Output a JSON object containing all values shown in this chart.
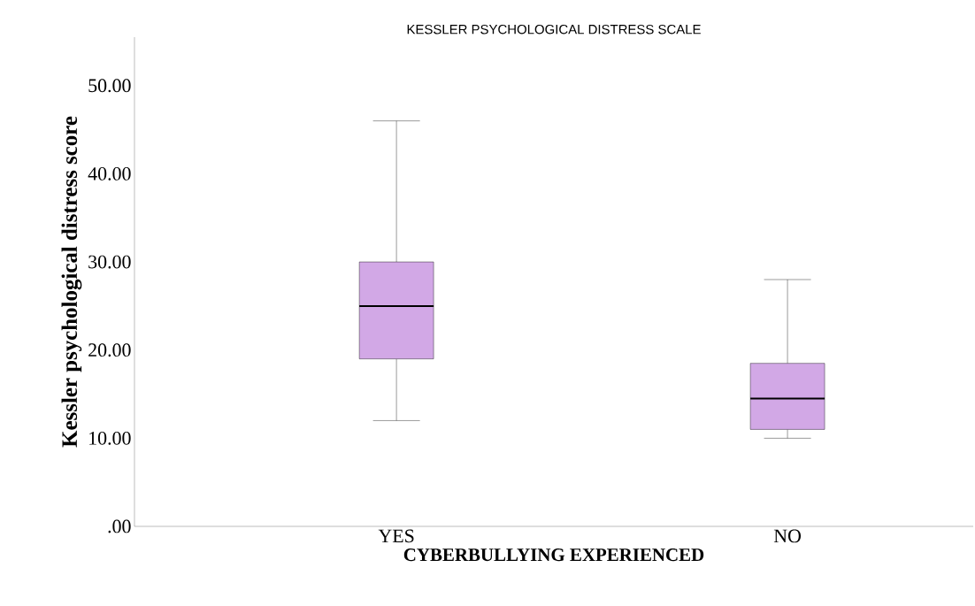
{
  "chart_data": {
    "type": "box",
    "title": "KESSLER PSYCHOLOGICAL DISTRESS SCALE",
    "xlabel": "CYBERBULLYING EXPERIENCED",
    "ylabel": "Kessler psychological distress score",
    "categories": [
      "YES",
      "NO"
    ],
    "boxes": [
      {
        "low": 12,
        "q1": 19,
        "median": 25,
        "q3": 30,
        "high": 46
      },
      {
        "low": 10,
        "q1": 11,
        "median": 14.5,
        "q3": 18.5,
        "high": 28
      }
    ],
    "color": "#d2a8e6",
    "ylim": [
      0,
      55.5
    ],
    "yticks": [
      {
        "value": 0,
        "label": ".00"
      },
      {
        "value": 10,
        "label": "10.00"
      },
      {
        "value": 20,
        "label": "20.00"
      },
      {
        "value": 30,
        "label": "30.00"
      },
      {
        "value": 40,
        "label": "40.00"
      },
      {
        "value": 50,
        "label": "50.00"
      }
    ]
  }
}
